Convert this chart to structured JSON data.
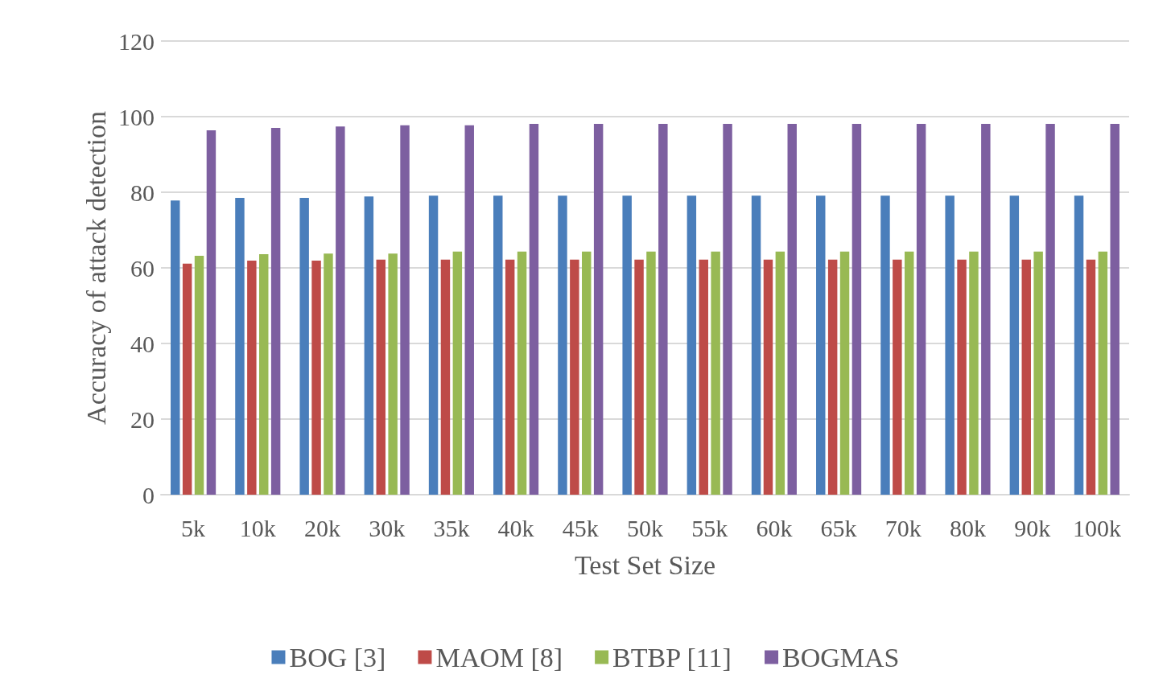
{
  "chart_data": {
    "type": "bar",
    "xlabel": "Test Set Size",
    "ylabel": "Accuracy of attack detection",
    "categories": [
      "5k",
      "10k",
      "20k",
      "30k",
      "35k",
      "40k",
      "45k",
      "50k",
      "55k",
      "60k",
      "65k",
      "70k",
      "80k",
      "90k",
      "100k"
    ],
    "series": [
      {
        "name": "BOG [3]",
        "color": "#4a7ebb",
        "values": [
          77.8,
          78.5,
          78.5,
          78.9,
          79.1,
          79.1,
          79.1,
          79.1,
          79.1,
          79.1,
          79.1,
          79.1,
          79.1,
          79.1,
          79.1
        ]
      },
      {
        "name": "MAOM [8]",
        "color": "#be4b48",
        "values": [
          61.1,
          61.9,
          61.9,
          62.2,
          62.2,
          62.2,
          62.2,
          62.2,
          62.2,
          62.2,
          62.2,
          62.2,
          62.2,
          62.2,
          62.2
        ]
      },
      {
        "name": "BTBP [11]",
        "color": "#98b954",
        "values": [
          63.2,
          63.6,
          63.8,
          63.8,
          64.3,
          64.3,
          64.3,
          64.3,
          64.3,
          64.3,
          64.3,
          64.3,
          64.3,
          64.3,
          64.3
        ]
      },
      {
        "name": "BOGMAS",
        "color": "#7d5fa0",
        "values": [
          96.4,
          97.0,
          97.4,
          97.7,
          97.7,
          98.1,
          98.1,
          98.1,
          98.1,
          98.1,
          98.1,
          98.1,
          98.1,
          98.1,
          98.1
        ]
      }
    ],
    "ylim": [
      0,
      120
    ],
    "yticks": [
      0,
      20,
      40,
      60,
      80,
      100,
      120
    ],
    "grid": "y",
    "legend": "bottom"
  }
}
